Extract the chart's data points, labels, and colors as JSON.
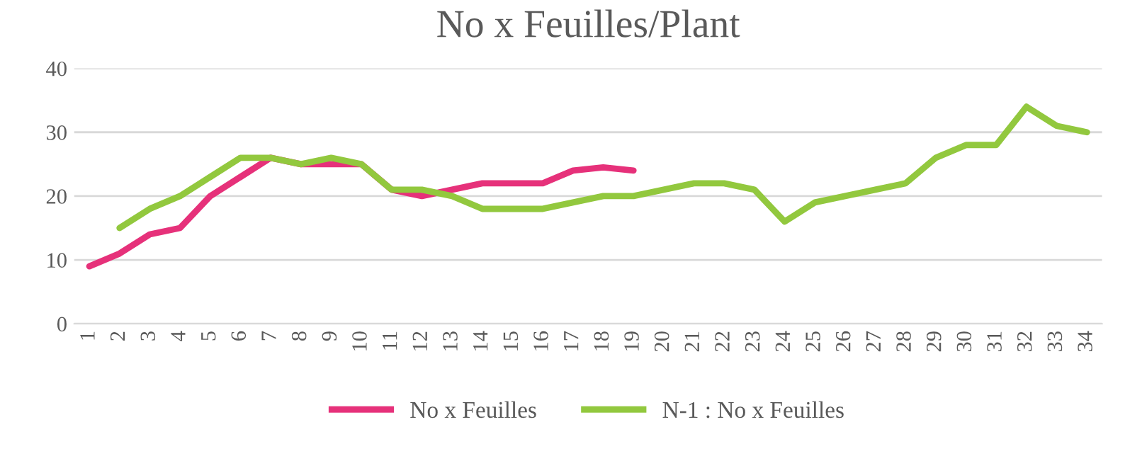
{
  "chart_data": {
    "type": "line",
    "title": "No x Feuilles/Plant",
    "categories": [
      "1",
      "2",
      "3",
      "4",
      "5",
      "6",
      "7",
      "8",
      "9",
      "10",
      "11",
      "12",
      "13",
      "14",
      "15",
      "16",
      "17",
      "18",
      "19",
      "20",
      "21",
      "22",
      "23",
      "24",
      "25",
      "26",
      "27",
      "28",
      "29",
      "30",
      "31",
      "32",
      "33",
      "34"
    ],
    "series": [
      {
        "name": "No x Feuilles",
        "color": "#e6317a",
        "values": [
          9,
          11,
          14,
          15,
          20,
          23,
          26,
          25,
          25,
          25,
          21,
          20,
          21,
          22,
          22,
          22,
          24,
          24.5,
          24,
          null,
          null,
          null,
          null,
          null,
          null,
          null,
          null,
          null,
          null,
          null,
          null,
          null,
          null,
          null
        ]
      },
      {
        "name": "N-1 : No x Feuilles",
        "color": "#92c83e",
        "values": [
          null,
          15,
          18,
          20,
          23,
          26,
          26,
          25,
          26,
          25,
          21,
          21,
          20,
          18,
          18,
          18,
          19,
          20,
          20,
          21,
          22,
          22,
          21,
          16,
          19,
          20,
          21,
          22,
          26,
          28,
          28,
          34,
          31,
          30
        ]
      }
    ],
    "ylim": [
      0,
      40
    ],
    "yticks": [
      0,
      10,
      20,
      30,
      40
    ],
    "grid": "y",
    "legend": "bottom",
    "marker": "none",
    "line_style": "solid"
  }
}
